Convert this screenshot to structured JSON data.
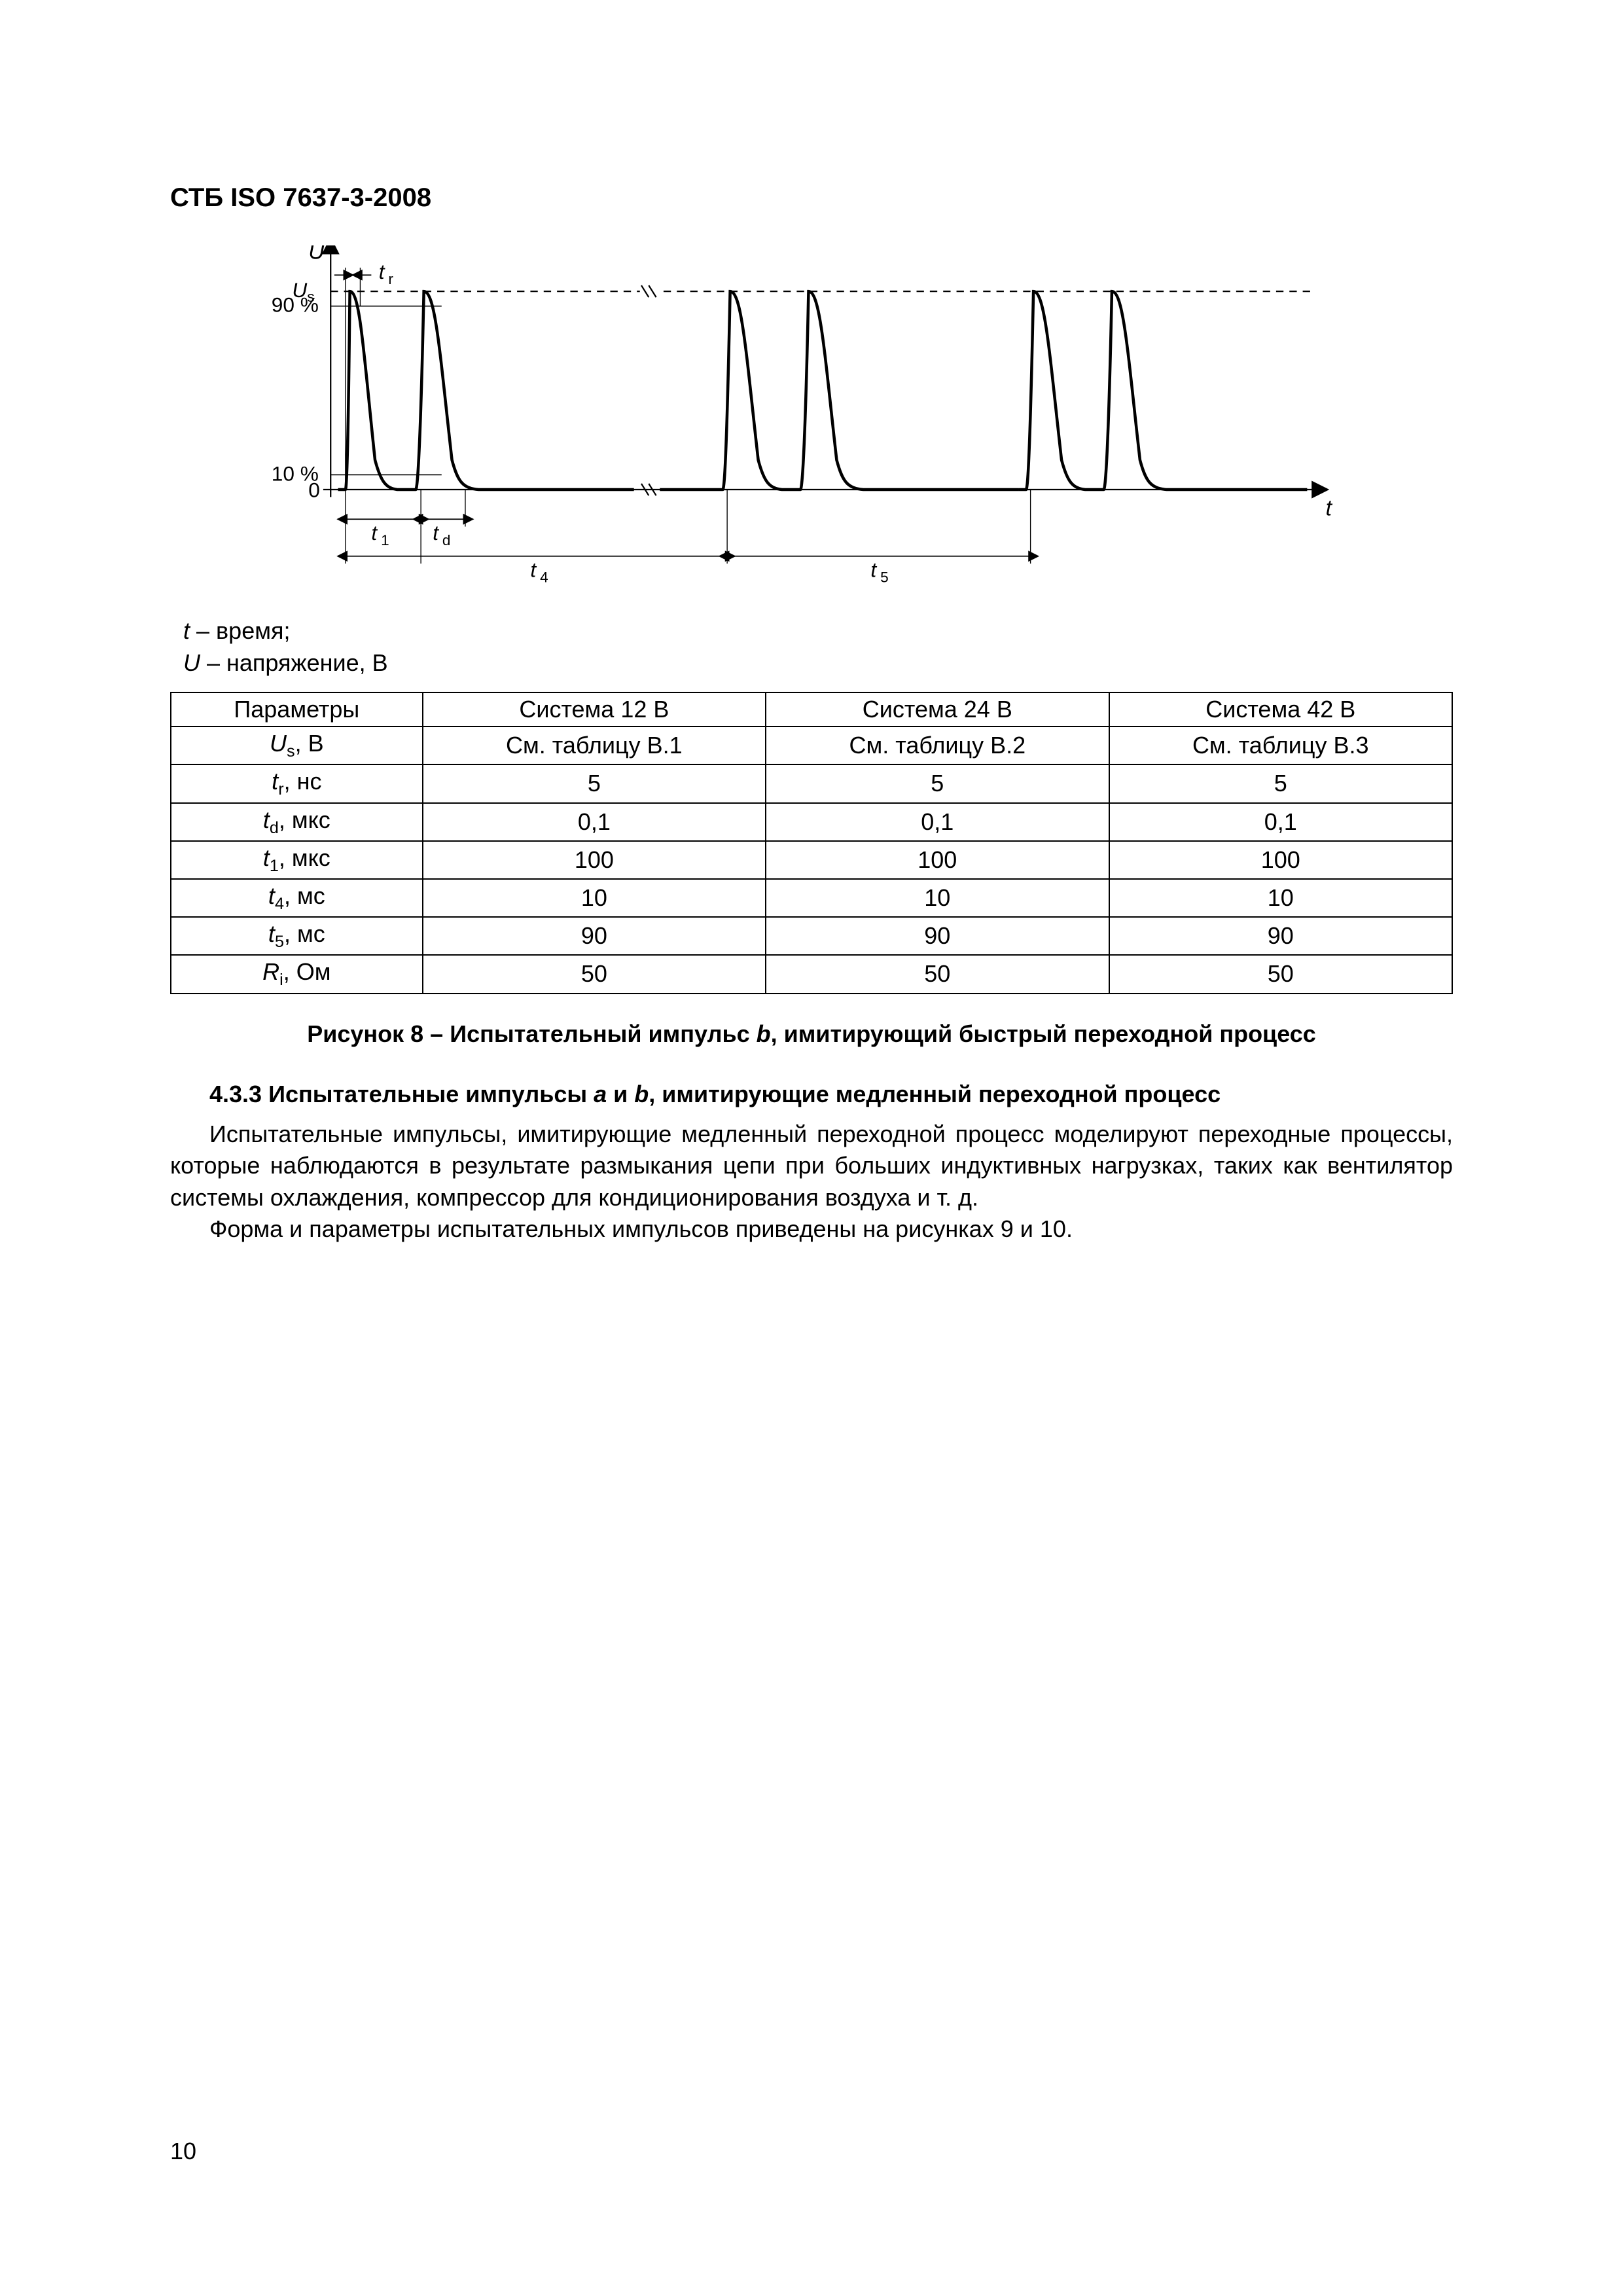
{
  "header": "СТБ ISO 7637-3-2008",
  "figure": {
    "type": "pulse-diagram",
    "axis_labels": {
      "y": "U",
      "x": "t"
    },
    "y_ticks": [
      {
        "label": "U",
        "sub": "s",
        "y": 60
      },
      {
        "label": "90 %",
        "y": 78
      },
      {
        "label": "10 %",
        "y": 312
      },
      {
        "label": "0",
        "y": 330
      }
    ],
    "time_labels": {
      "tr": "t",
      "tr_sub": "r",
      "t1": "t",
      "t1_sub": "1",
      "td": "t",
      "td_sub": "d",
      "t4": "t",
      "t4_sub": "4",
      "t5": "t",
      "t5_sub": "5"
    },
    "colors": {
      "stroke": "#000000",
      "bg": "#ffffff",
      "dash": "#000000"
    },
    "line_width_main": 4,
    "line_width_dim": 2,
    "pulses_group1_x": [
      120,
      230
    ],
    "pulses_group2_x": [
      640,
      750
    ],
    "pulses_group3_x": [
      1050,
      1160
    ],
    "pulse_width": 70,
    "axis_origin": {
      "x": 100,
      "y": 330
    },
    "axis_top": 0,
    "axis_right": 1420
  },
  "legend": {
    "line1_sym": "t",
    "line1_text": " – время;",
    "line2_sym": "U",
    "line2_text": " – напряжение, В"
  },
  "table": {
    "headers": [
      "Параметры",
      "Система 12 В",
      "Система 24 В",
      "Система 42 В"
    ],
    "rows": [
      {
        "param_html": "<span class='ital'>U</span><sub>s</sub>, В",
        "c1": "См. таблицу В.1",
        "c2": "См. таблицу В.2",
        "c3": "См. таблицу В.3"
      },
      {
        "param_html": "<span class='ital'>t</span><sub>r</sub>, нс",
        "c1": "5",
        "c2": "5",
        "c3": "5"
      },
      {
        "param_html": "<span class='ital'>t</span><sub>d</sub>, мкс",
        "c1": "0,1",
        "c2": "0,1",
        "c3": "0,1"
      },
      {
        "param_html": "<span class='ital'>t</span><sub>1</sub>, мкс",
        "c1": "100",
        "c2": "100",
        "c3": "100"
      },
      {
        "param_html": "<span class='ital'>t</span><sub>4</sub>, мс",
        "c1": "10",
        "c2": "10",
        "c3": "10"
      },
      {
        "param_html": "<span class='ital'>t</span><sub>5</sub>, мс",
        "c1": "90",
        "c2": "90",
        "c3": "90"
      },
      {
        "param_html": "<span class='ital'>R</span><sub>i</sub>, Ом",
        "c1": "50",
        "c2": "50",
        "c3": "50"
      }
    ]
  },
  "caption_prefix": "Рисунок 8 – Испытательный импульс ",
  "caption_ital": "b",
  "caption_suffix": ", имитирующий быстрый переходной процесс",
  "section_prefix": "4.3.3 Испытательные импульсы ",
  "section_a": "a",
  "section_and": " и ",
  "section_b": "b",
  "section_suffix": ", имитирующие медленный переходной процесс",
  "para1": "Испытательные импульсы, имитирующие медленный переходной процесс моделируют переходные процессы, которые наблюдаются в результате размыкания цепи при больших индуктивных нагрузках, таких как вентилятор системы охлаждения, компрессор для кондиционирования воздуха и т. д.",
  "para2": "Форма и параметры испытательных импульсов приведены на рисунках 9 и 10.",
  "page_number": "10"
}
